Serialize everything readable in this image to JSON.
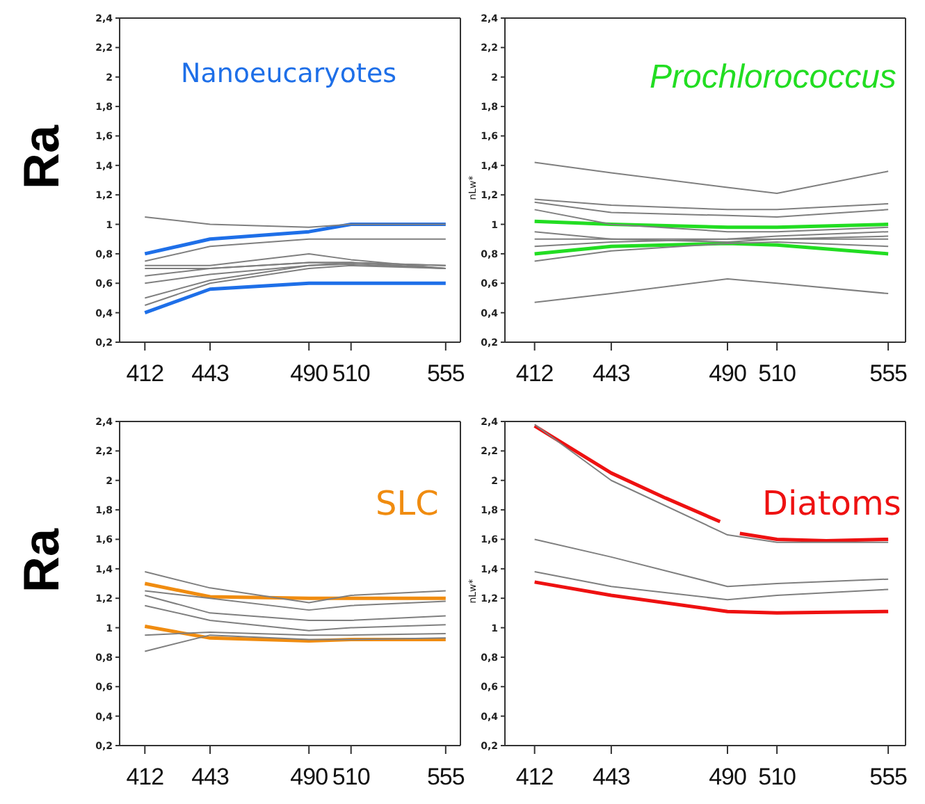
{
  "chart_data": [
    {
      "type": "line",
      "title": "Nanoeucaryotes",
      "ylabel": "Ra",
      "x": [
        412,
        443,
        490,
        510,
        555
      ],
      "xlim": [
        400,
        562
      ],
      "xticks": [
        412,
        443,
        490,
        510,
        555
      ],
      "ylim": [
        0.2,
        2.4
      ],
      "yticks": [
        {
          "value": 0.2,
          "label": "0,2"
        },
        {
          "value": 0.4,
          "label": "0,4"
        },
        {
          "value": 0.6,
          "label": "0,6"
        },
        {
          "value": 0.8,
          "label": "0,8"
        },
        {
          "value": 1,
          "label": "1"
        },
        {
          "value": 1.2,
          "label": "1,2"
        },
        {
          "value": 1.4,
          "label": "1,4"
        },
        {
          "value": 1.6,
          "label": "1,6"
        },
        {
          "value": 1.8,
          "label": "1,8"
        },
        {
          "value": 2,
          "label": "2"
        },
        {
          "value": 2.2,
          "label": "2,2"
        },
        {
          "value": 2.4,
          "label": "2,4"
        }
      ],
      "color": "#7f7f7f",
      "grid": false,
      "legend": false,
      "series": [
        {
          "color": "#1e6fe8",
          "values": [
            0.8,
            0.9,
            0.95,
            1.0,
            1.0
          ]
        },
        {
          "color": "#1e6fe8",
          "values": [
            0.4,
            0.56,
            0.6,
            0.6,
            0.6
          ]
        },
        {
          "values": [
            1.05,
            1.0,
            0.98,
            1.0,
            1.0
          ]
        },
        {
          "values": [
            0.75,
            0.85,
            0.9,
            0.9,
            0.9
          ]
        },
        {
          "values": [
            0.72,
            0.72,
            0.8,
            0.76,
            0.7
          ]
        },
        {
          "values": [
            0.7,
            0.7,
            0.74,
            0.74,
            0.72
          ]
        },
        {
          "values": [
            0.65,
            0.7,
            0.74,
            0.74,
            0.72
          ]
        },
        {
          "values": [
            0.6,
            0.66,
            0.72,
            0.74,
            0.7
          ]
        },
        {
          "values": [
            0.5,
            0.62,
            0.72,
            0.73,
            0.7
          ]
        },
        {
          "values": [
            0.45,
            0.6,
            0.7,
            0.72,
            0.7
          ]
        }
      ]
    },
    {
      "type": "line",
      "title": "Prochlorococcus",
      "ylabel": "nLw*",
      "x": [
        412,
        443,
        490,
        510,
        555
      ],
      "xlim": [
        400,
        562
      ],
      "xticks": [
        412,
        443,
        490,
        510,
        555
      ],
      "ylim": [
        0.2,
        2.4
      ],
      "yticks": [
        {
          "value": 0.2,
          "label": "0,2"
        },
        {
          "value": 0.4,
          "label": "0,4"
        },
        {
          "value": 0.6,
          "label": "0,6"
        },
        {
          "value": 0.8,
          "label": "0,8"
        },
        {
          "value": 1,
          "label": "1"
        },
        {
          "value": 1.2,
          "label": "1,2"
        },
        {
          "value": 1.4,
          "label": "1,4"
        },
        {
          "value": 1.6,
          "label": "1,6"
        },
        {
          "value": 1.8,
          "label": "1,8"
        },
        {
          "value": 2,
          "label": "2"
        },
        {
          "value": 2.2,
          "label": "2,2"
        },
        {
          "value": 2.4,
          "label": "2,4"
        }
      ],
      "color": "#7f7f7f",
      "grid": false,
      "legend": false,
      "series": [
        {
          "color": "#22dd22",
          "values": [
            1.02,
            1.0,
            0.98,
            0.98,
            1.0
          ]
        },
        {
          "color": "#22dd22",
          "values": [
            0.8,
            0.85,
            0.87,
            0.86,
            0.8
          ]
        },
        {
          "values": [
            1.42,
            1.35,
            1.25,
            1.21,
            1.36
          ]
        },
        {
          "values": [
            1.17,
            1.13,
            1.1,
            1.1,
            1.14
          ]
        },
        {
          "values": [
            1.15,
            1.08,
            1.06,
            1.05,
            1.1
          ]
        },
        {
          "values": [
            1.1,
            1.0,
            0.95,
            0.95,
            0.98
          ]
        },
        {
          "values": [
            0.95,
            0.9,
            0.9,
            0.9,
            0.92
          ]
        },
        {
          "values": [
            0.9,
            0.9,
            0.88,
            0.9,
            0.9
          ]
        },
        {
          "values": [
            0.85,
            0.88,
            0.9,
            0.92,
            0.95
          ]
        },
        {
          "values": [
            0.75,
            0.82,
            0.87,
            0.88,
            0.85
          ]
        },
        {
          "values": [
            0.47,
            0.53,
            0.63,
            0.6,
            0.53
          ]
        }
      ]
    },
    {
      "type": "line",
      "title": "SLC",
      "ylabel": "Ra",
      "x": [
        412,
        443,
        490,
        510,
        555
      ],
      "xlim": [
        400,
        562
      ],
      "xticks": [
        412,
        443,
        490,
        510,
        555
      ],
      "ylim": [
        0.2,
        2.4
      ],
      "yticks": [
        {
          "value": 0.2,
          "label": "0,2"
        },
        {
          "value": 0.4,
          "label": "0,4"
        },
        {
          "value": 0.6,
          "label": "0,6"
        },
        {
          "value": 0.8,
          "label": "0,8"
        },
        {
          "value": 1,
          "label": "1"
        },
        {
          "value": 1.2,
          "label": "1,2"
        },
        {
          "value": 1.4,
          "label": "1,4"
        },
        {
          "value": 1.6,
          "label": "1,6"
        },
        {
          "value": 1.8,
          "label": "1,8"
        },
        {
          "value": 2,
          "label": "2"
        },
        {
          "value": 2.2,
          "label": "2,2"
        },
        {
          "value": 2.4,
          "label": "2,4"
        }
      ],
      "color": "#7f7f7f",
      "grid": false,
      "legend": false,
      "series": [
        {
          "color": "#f08c10",
          "values": [
            1.3,
            1.21,
            1.2,
            1.2,
            1.2
          ]
        },
        {
          "color": "#f08c10",
          "values": [
            1.01,
            0.93,
            0.91,
            0.92,
            0.92
          ]
        },
        {
          "values": [
            1.38,
            1.27,
            1.17,
            1.22,
            1.25
          ]
        },
        {
          "values": [
            1.25,
            1.2,
            1.12,
            1.15,
            1.18
          ]
        },
        {
          "values": [
            1.22,
            1.1,
            1.05,
            1.05,
            1.08
          ]
        },
        {
          "values": [
            1.15,
            1.05,
            0.98,
            1.0,
            1.02
          ]
        },
        {
          "values": [
            0.95,
            0.97,
            0.95,
            0.95,
            0.96
          ]
        },
        {
          "values": [
            0.84,
            0.95,
            0.92,
            0.92,
            0.93
          ]
        }
      ]
    },
    {
      "type": "line",
      "title": "Diatoms",
      "ylabel": "nLw*",
      "x": [
        412,
        443,
        490,
        510,
        555
      ],
      "xlim": [
        400,
        562
      ],
      "xticks": [
        412,
        443,
        490,
        510,
        555
      ],
      "ylim": [
        0.2,
        2.4
      ],
      "yticks": [
        {
          "value": 0.2,
          "label": "0,2"
        },
        {
          "value": 0.4,
          "label": "0,4"
        },
        {
          "value": 0.6,
          "label": "0,6"
        },
        {
          "value": 0.8,
          "label": "0,8"
        },
        {
          "value": 1,
          "label": "1"
        },
        {
          "value": 1.2,
          "label": "1,2"
        },
        {
          "value": 1.4,
          "label": "1,4"
        },
        {
          "value": 1.6,
          "label": "1,6"
        },
        {
          "value": 1.8,
          "label": "1,8"
        },
        {
          "value": 2,
          "label": "2"
        },
        {
          "value": 2.2,
          "label": "2,2"
        },
        {
          "value": 2.4,
          "label": "2,4"
        }
      ],
      "color": "#7f7f7f",
      "grid": false,
      "legend": false,
      "series": [
        {
          "color": "#ee1111",
          "x": [
            412,
            443,
            465,
            487
          ],
          "values": [
            2.37,
            2.05,
            1.88,
            1.72
          ]
        },
        {
          "color": "#ee1111",
          "x": [
            495,
            510,
            530,
            555
          ],
          "values": [
            1.64,
            1.6,
            1.59,
            1.6
          ]
        },
        {
          "color": "#ee1111",
          "values": [
            1.31,
            1.22,
            1.11,
            1.1,
            1.11
          ]
        },
        {
          "values": [
            2.38,
            2.0,
            1.63,
            1.58,
            1.58
          ]
        },
        {
          "values": [
            1.6,
            1.48,
            1.28,
            1.3,
            1.33
          ]
        },
        {
          "values": [
            1.38,
            1.28,
            1.19,
            1.22,
            1.26
          ]
        }
      ]
    }
  ]
}
